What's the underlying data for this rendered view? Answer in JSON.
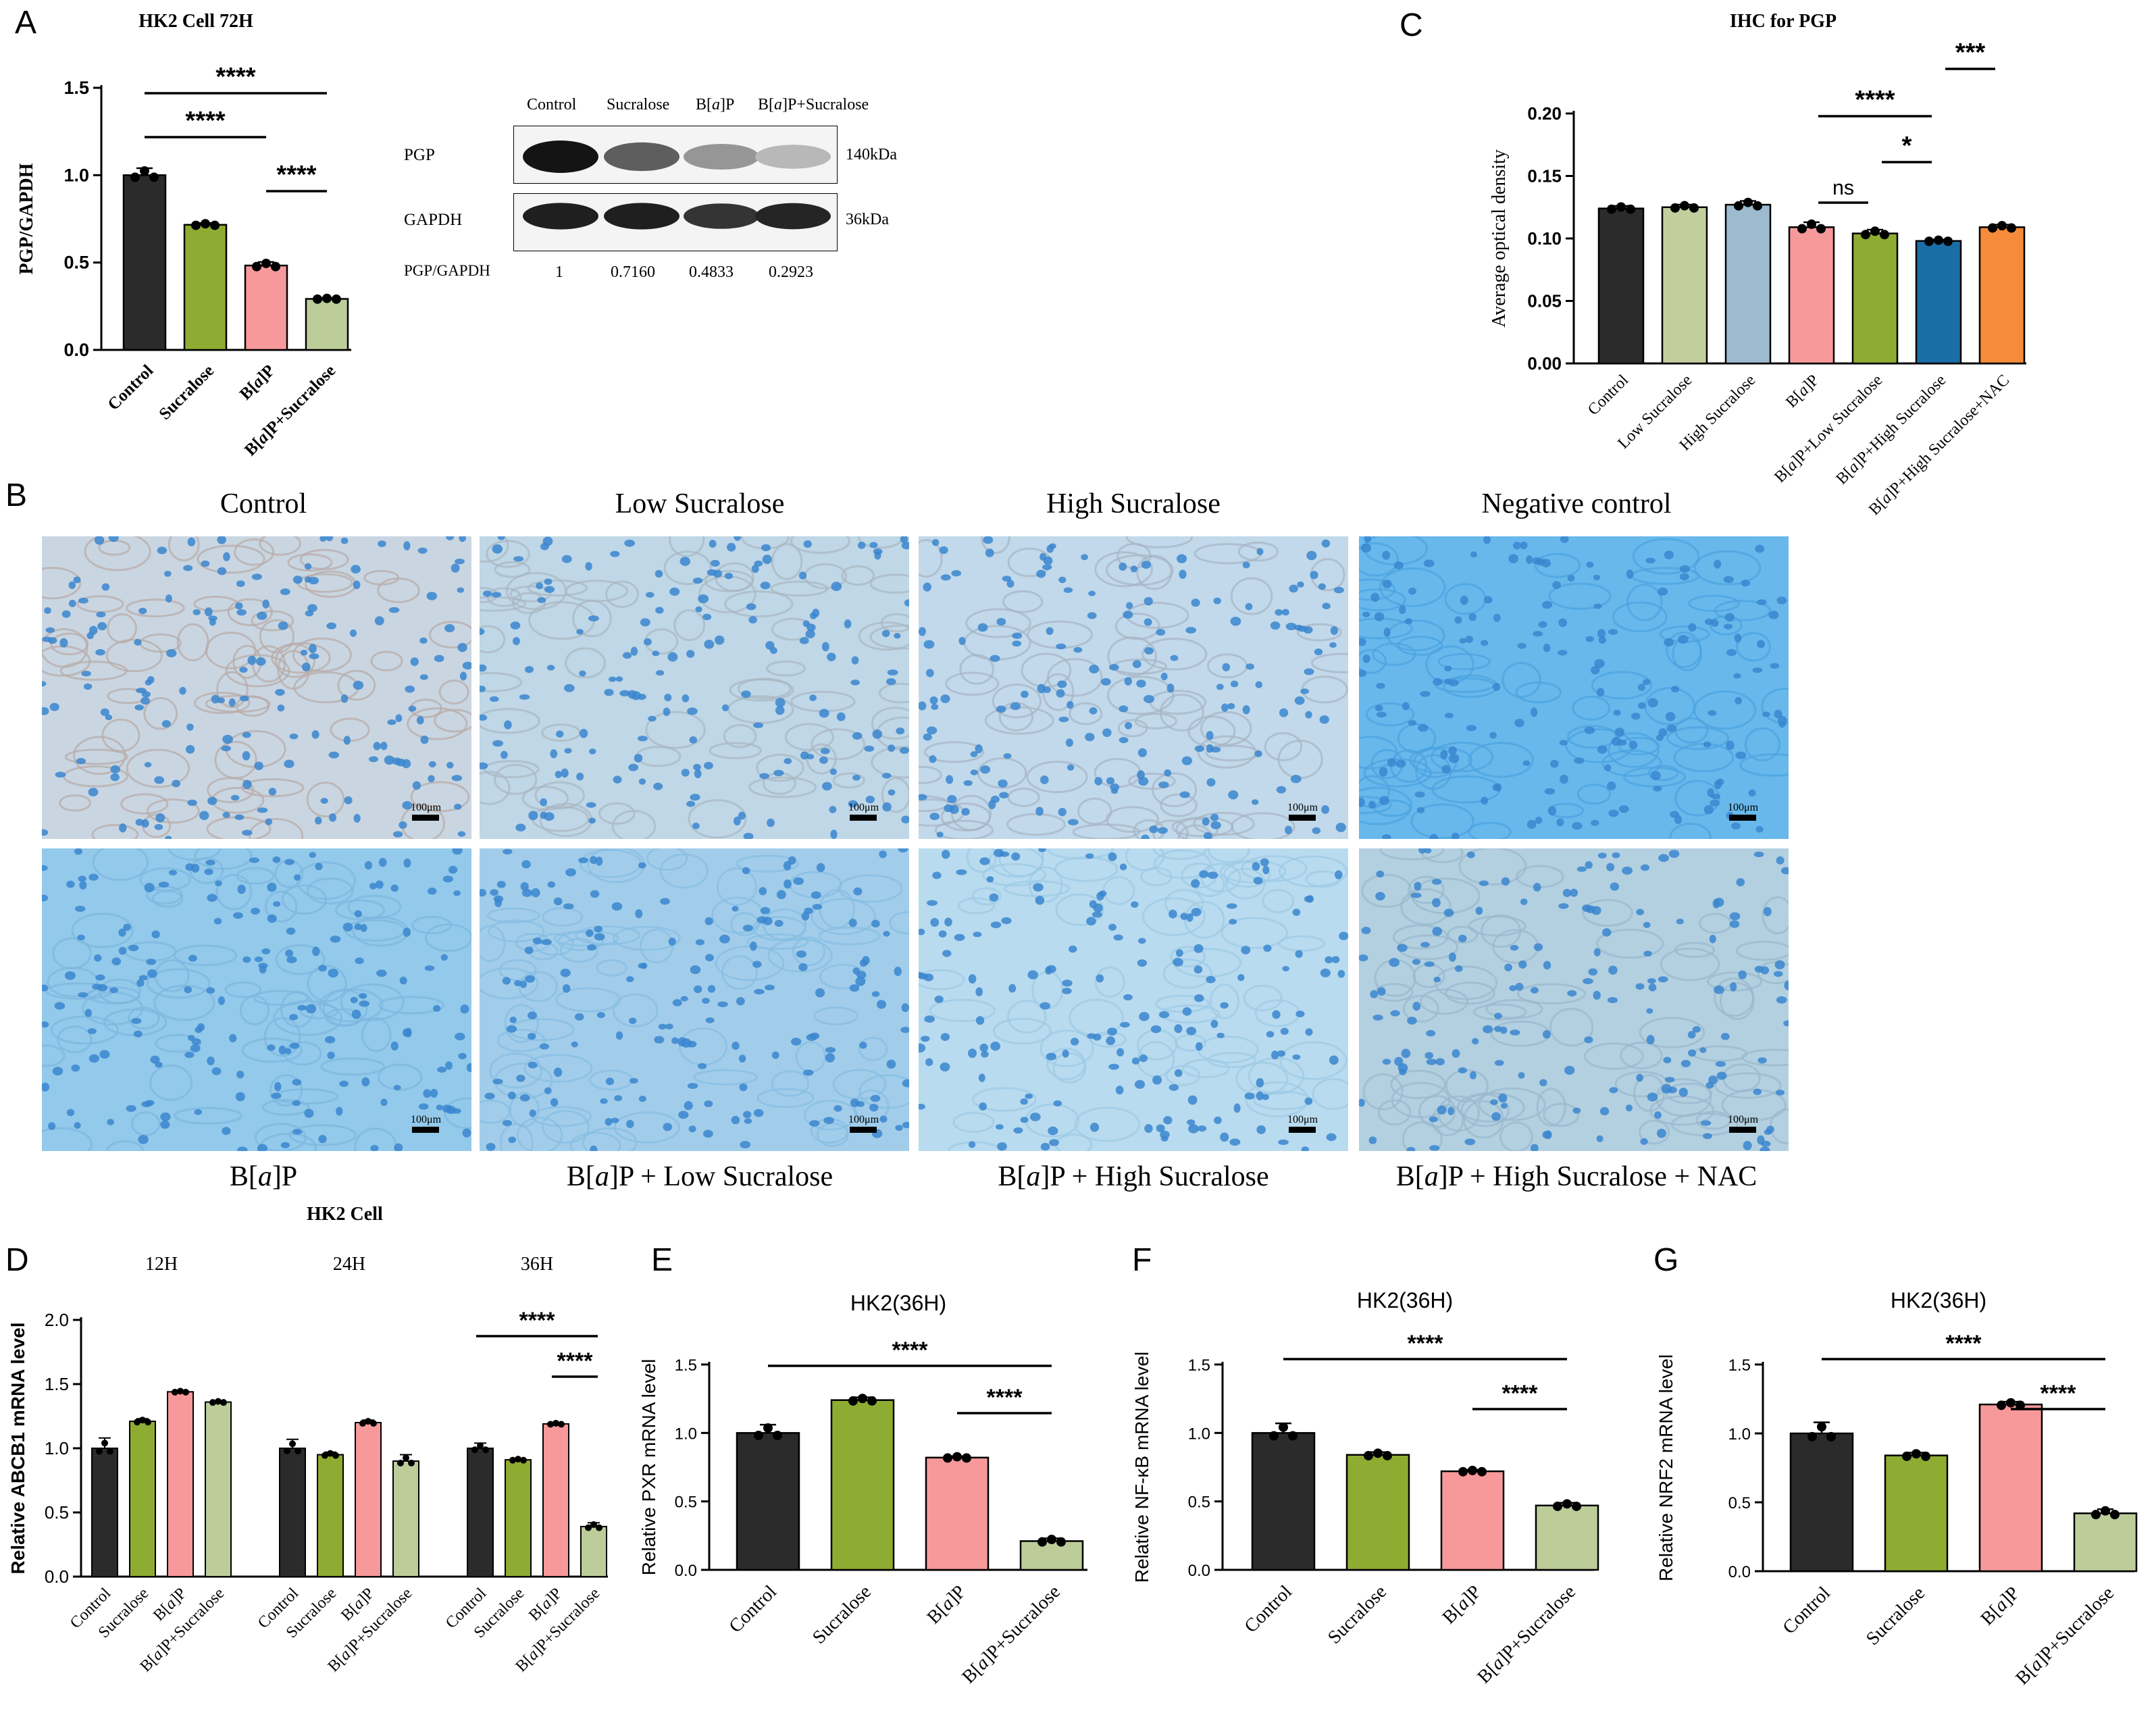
{
  "colors": {
    "control": "#2b2b2b",
    "sucralose": "#8fac32",
    "bap": "#f7999a",
    "combo": "#bccd9a",
    "lowsuc": "#c3ce9f",
    "highsuc": "#9dbbcf",
    "highsuc_dark": "#1a6ea8",
    "nac": "#f58b3b",
    "tissue_bg": "#a7d3ee",
    "nucleus": "#3a86cf"
  },
  "panel_letters": {
    "A": "A",
    "B": "B",
    "C": "C",
    "D": "D",
    "E": "E",
    "F": "F",
    "G": "G"
  },
  "western_blot": {
    "lanes": [
      "Control",
      "Sucralose",
      "B[a]P",
      "B[a]P+Sucralose"
    ],
    "rows": [
      {
        "label": "PGP",
        "size": "140kDa",
        "intensity": [
          1.0,
          0.65,
          0.38,
          0.22
        ]
      },
      {
        "label": "GAPDH",
        "size": "36kDa",
        "intensity": [
          0.95,
          0.95,
          0.85,
          0.92
        ]
      }
    ],
    "ratio_label": "PGP/GAPDH",
    "ratios": [
      "1",
      "0.7160",
      "0.4833",
      "0.2923"
    ]
  },
  "ihc_panel": {
    "top_labels": [
      "Control",
      "Low Sucralose",
      "High Sucralose",
      "Negative control"
    ],
    "bottom_labels": [
      "B[a]P",
      "B[a]P + Low Sucralose",
      "B[a]P + High Sucralose",
      "B[a]P + High Sucralose + NAC"
    ],
    "scale_bar": "100μm"
  },
  "hk2_cell_title": "HK2 Cell",
  "chart_data": [
    {
      "id": "A",
      "type": "bar",
      "title": "HK2 Cell 72H",
      "ylabel": "PGP/GAPDH",
      "categories": [
        "Control",
        "Sucralose",
        "B[a]P",
        "B[a]P+Sucralose"
      ],
      "values": [
        1.0,
        0.716,
        0.483,
        0.292
      ],
      "errors": [
        0.04,
        0.01,
        0.02,
        0.005
      ],
      "colors": [
        "#2b2b2b",
        "#8fac32",
        "#f7999a",
        "#bccd9a"
      ],
      "yticks": [
        "0.0",
        "0.5",
        "1.0",
        "1.5"
      ],
      "ylim": [
        0,
        1.5
      ],
      "significance": [
        {
          "from": 0,
          "to": 3,
          "label": "****"
        },
        {
          "from": 0,
          "to": 2,
          "label": "****"
        },
        {
          "from": 2,
          "to": 3,
          "label": "****"
        }
      ]
    },
    {
      "id": "C",
      "type": "bar",
      "title": "IHC for PGP",
      "ylabel": "Average optical density",
      "categories": [
        "Control",
        "Low Sucralose",
        "High Sucralose",
        "B[a]P",
        "B[a]P+Low Sucralose",
        "B[a]P+High Sucralose",
        "B[a]P+High Sucralose+NAC"
      ],
      "values": [
        0.124,
        0.125,
        0.127,
        0.109,
        0.104,
        0.098,
        0.109
      ],
      "errors": [
        0.002,
        0.002,
        0.003,
        0.004,
        0.003,
        0.001,
        0.002
      ],
      "colors": [
        "#2b2b2b",
        "#c3ce9f",
        "#9dbbcf",
        "#f7999a",
        "#8fac32",
        "#1a6ea8",
        "#f58b3b"
      ],
      "yticks": [
        "0.00",
        "0.05",
        "0.10",
        "0.15",
        "0.20"
      ],
      "ylim": [
        0,
        0.2
      ],
      "significance": [
        {
          "from": 5,
          "to": 6,
          "label": "***"
        },
        {
          "from": 3,
          "to": 5,
          "label": "****"
        },
        {
          "from": 4,
          "to": 5,
          "label": "*"
        },
        {
          "from": 3,
          "to": 4,
          "label": "ns"
        }
      ]
    },
    {
      "id": "D",
      "type": "bar",
      "title": "",
      "ylabel": "Relative ABCB1 mRNA level",
      "groups": [
        "12H",
        "24H",
        "36H"
      ],
      "categories": [
        "Control",
        "Sucralose",
        "B[a]P",
        "B[a]P+Sucralose"
      ],
      "series": [
        {
          "group": "12H",
          "values": [
            1.0,
            1.21,
            1.44,
            1.36
          ],
          "errors": [
            0.08,
            0.02,
            0.01,
            0.01
          ]
        },
        {
          "group": "24H",
          "values": [
            1.0,
            0.95,
            1.2,
            0.9
          ],
          "errors": [
            0.07,
            0.02,
            0.02,
            0.05
          ]
        },
        {
          "group": "36H",
          "values": [
            1.0,
            0.91,
            1.19,
            0.39
          ],
          "errors": [
            0.04,
            0.01,
            0.01,
            0.03
          ]
        }
      ],
      "colors": [
        "#2b2b2b",
        "#8fac32",
        "#f7999a",
        "#bccd9a"
      ],
      "yticks": [
        "0.0",
        "0.5",
        "1.0",
        "1.5",
        "2.0"
      ],
      "ylim": [
        0,
        2.0
      ],
      "significance": [
        {
          "group": 2,
          "from": 0,
          "to": 3,
          "label": "****"
        },
        {
          "group": 2,
          "from": 2,
          "to": 3,
          "label": "****"
        }
      ]
    },
    {
      "id": "E",
      "type": "bar",
      "title": "HK2(36H)",
      "ylabel": "Relative PXR mRNA level",
      "categories": [
        "Control",
        "Sucralose",
        "B[a]P",
        "B[a]P+Sucralose"
      ],
      "values": [
        1.0,
        1.24,
        0.82,
        0.21
      ],
      "errors": [
        0.06,
        0.02,
        0.01,
        0.02
      ],
      "colors": [
        "#2b2b2b",
        "#8fac32",
        "#f7999a",
        "#bccd9a"
      ],
      "yticks": [
        "0.0",
        "0.5",
        "1.0",
        "1.5"
      ],
      "ylim": [
        0,
        1.5
      ],
      "significance": [
        {
          "from": 0,
          "to": 3,
          "label": "****"
        },
        {
          "from": 2,
          "to": 3,
          "label": "****"
        }
      ]
    },
    {
      "id": "F",
      "type": "bar",
      "title": "HK2(36H)",
      "ylabel": "Relative NF-κB mRNA level",
      "categories": [
        "Control",
        "Sucralose",
        "B[a]P",
        "B[a]P+Sucralose"
      ],
      "values": [
        1.0,
        0.84,
        0.72,
        0.47
      ],
      "errors": [
        0.07,
        0.02,
        0.01,
        0.02
      ],
      "colors": [
        "#2b2b2b",
        "#8fac32",
        "#f7999a",
        "#bccd9a"
      ],
      "yticks": [
        "0.0",
        "0.5",
        "1.0",
        "1.5"
      ],
      "ylim": [
        0,
        1.5
      ],
      "significance": [
        {
          "from": 0,
          "to": 3,
          "label": "****"
        },
        {
          "from": 2,
          "to": 3,
          "label": "****"
        }
      ]
    },
    {
      "id": "G",
      "type": "bar",
      "title": "HK2(36H)",
      "ylabel": "Relative NRF2 mRNA level",
      "categories": [
        "Control",
        "Sucralose",
        "B[a]P",
        "B[a]P+Sucralose"
      ],
      "values": [
        1.0,
        0.84,
        1.21,
        0.42
      ],
      "errors": [
        0.08,
        0.02,
        0.02,
        0.03
      ],
      "colors": [
        "#2b2b2b",
        "#8fac32",
        "#f7999a",
        "#bccd9a"
      ],
      "yticks": [
        "0.0",
        "0.5",
        "1.0",
        "1.5"
      ],
      "ylim": [
        0,
        1.5
      ],
      "significance": [
        {
          "from": 0,
          "to": 3,
          "label": "****"
        },
        {
          "from": 2,
          "to": 3,
          "label": "****"
        }
      ]
    }
  ]
}
